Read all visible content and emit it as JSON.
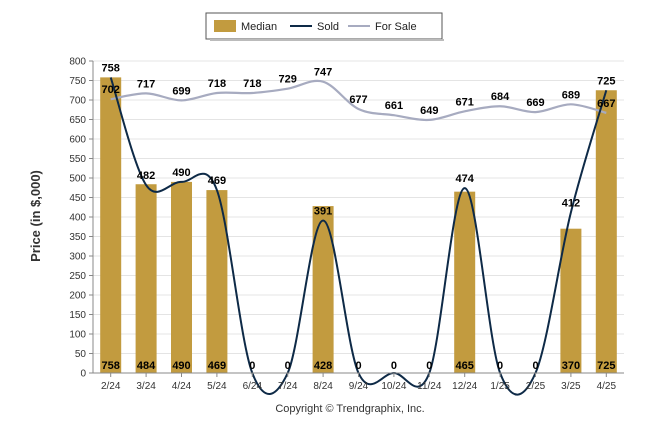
{
  "chart_data": {
    "type": "bar",
    "categories": [
      "2/24",
      "3/24",
      "4/24",
      "5/24",
      "6/24",
      "7/24",
      "8/24",
      "9/24",
      "10/24",
      "11/24",
      "12/24",
      "1/25",
      "2/25",
      "3/25",
      "4/25"
    ],
    "series": [
      {
        "name": "Median",
        "kind": "bar",
        "values": [
          758,
          484,
          490,
          469,
          0,
          0,
          428,
          0,
          0,
          0,
          465,
          0,
          0,
          370,
          725
        ]
      },
      {
        "name": "Sold",
        "kind": "line",
        "values": [
          758,
          482,
          490,
          469,
          0,
          0,
          391,
          0,
          0,
          0,
          474,
          0,
          0,
          412,
          725
        ]
      },
      {
        "name": "For Sale",
        "kind": "line",
        "values": [
          702,
          717,
          699,
          718,
          718,
          729,
          747,
          677,
          661,
          649,
          671,
          684,
          669,
          689,
          667
        ]
      }
    ],
    "ylabel": "Price (in $,000)",
    "ylim": [
      0,
      800
    ],
    "yticks": [
      0,
      50,
      100,
      150,
      200,
      250,
      300,
      350,
      400,
      450,
      500,
      550,
      600,
      650,
      700,
      750,
      800
    ],
    "grid": true,
    "legend_position": "top-center",
    "colors": {
      "Median": "#c29b3f",
      "Sold": "#0e2a47",
      "For Sale": "#a7abc0"
    }
  },
  "footer": {
    "copyright": "Copyright © Trendgraphix, Inc."
  }
}
